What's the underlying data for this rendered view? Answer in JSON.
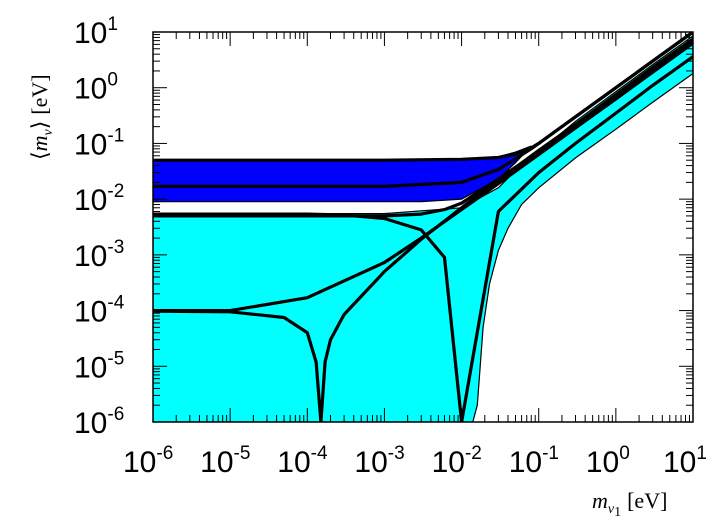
{
  "chart_data": {
    "type": "area",
    "title": "",
    "xlabel": {
      "symbol": "m",
      "subscript": "ν",
      "subsubscript": "1",
      "unit": "[eV]"
    },
    "ylabel": {
      "lbracket": "⟨",
      "symbol": "m",
      "subscript": "ν",
      "rbracket": "⟩",
      "unit": "[eV]"
    },
    "x_scale": "log",
    "y_scale": "log",
    "xlim": [
      1e-06,
      10
    ],
    "ylim": [
      1e-06,
      10
    ],
    "x_ticks": [
      {
        "base": "10",
        "exp": "-6"
      },
      {
        "base": "10",
        "exp": "-5"
      },
      {
        "base": "10",
        "exp": "-4"
      },
      {
        "base": "10",
        "exp": "-3"
      },
      {
        "base": "10",
        "exp": "-2"
      },
      {
        "base": "10",
        "exp": "-1"
      },
      {
        "base": "10",
        "exp": "0"
      },
      {
        "base": "10",
        "exp": "1"
      }
    ],
    "y_ticks": [
      {
        "base": "10",
        "exp": "-6"
      },
      {
        "base": "10",
        "exp": "-5"
      },
      {
        "base": "10",
        "exp": "-4"
      },
      {
        "base": "10",
        "exp": "-3"
      },
      {
        "base": "10",
        "exp": "-2"
      },
      {
        "base": "10",
        "exp": "-1"
      },
      {
        "base": "10",
        "exp": "0"
      },
      {
        "base": "10",
        "exp": "1"
      }
    ],
    "grid": false,
    "colors": {
      "cyan_region": "#00ffff",
      "blue_region": "#0000ff",
      "curves": "#000000",
      "frame": "#000000"
    },
    "regions": [
      {
        "color": "cyan",
        "upper": {
          "x": [
            1e-06,
            0.001,
            0.01,
            0.03,
            0.06,
            0.1,
            0.3,
            1,
            3,
            10
          ],
          "y": [
            0.0055,
            0.0055,
            0.007,
            0.016,
            0.042,
            0.07,
            0.25,
            0.85,
            2.6,
            8.5
          ]
        },
        "lower": {
          "x": [
            1e-06,
            0.014,
            0.016,
            0.019,
            0.023,
            0.03,
            0.04,
            0.06,
            0.1,
            0.3,
            1,
            3,
            10
          ],
          "y": [
            1e-06,
            1e-06,
            2e-06,
            5e-05,
            0.0003,
            0.0012,
            0.003,
            0.008,
            0.016,
            0.055,
            0.18,
            0.55,
            1.8
          ]
        }
      },
      {
        "color": "blue",
        "upper": {
          "x": [
            1e-06,
            0.001,
            0.01,
            0.03,
            0.05,
            0.08
          ],
          "y": [
            0.05,
            0.05,
            0.052,
            0.058,
            0.07,
            0.09
          ]
        },
        "lower": {
          "x": [
            1e-06,
            0.001,
            0.003,
            0.01,
            0.03,
            0.05,
            0.08
          ],
          "y": [
            0.009,
            0.009,
            0.009,
            0.01,
            0.023,
            0.045,
            0.09
          ]
        }
      }
    ],
    "curves": [
      {
        "x": [
          1e-06,
          0.001,
          0.01,
          0.03,
          0.05,
          0.08,
          0.1,
          0.3,
          1,
          3,
          10
        ],
        "y": [
          0.05,
          0.05,
          0.052,
          0.056,
          0.064,
          0.083,
          0.1,
          0.3,
          1,
          3,
          10
        ]
      },
      {
        "x": [
          1e-06,
          0.001,
          0.01,
          0.03,
          0.05,
          0.08,
          0.1,
          0.3,
          1,
          3,
          10
        ],
        "y": [
          0.017,
          0.017,
          0.02,
          0.034,
          0.053,
          0.08,
          0.1,
          0.3,
          1,
          3,
          10
        ]
      },
      {
        "x": [
          1e-06,
          0.001,
          0.003,
          0.006,
          0.01,
          0.03,
          0.1,
          0.3,
          1,
          3,
          10
        ],
        "y": [
          0.005,
          0.005,
          0.0054,
          0.0065,
          0.0085,
          0.023,
          0.072,
          0.22,
          0.72,
          2.15,
          7.2
        ]
      },
      {
        "x": [
          1e-06,
          1e-05,
          0.0001,
          0.001,
          0.003,
          0.01,
          0.03,
          0.1,
          0.3,
          1,
          3,
          10
        ],
        "y": [
          0.0001,
          0.0001,
          0.00017,
          0.00073,
          0.002,
          0.0065,
          0.019,
          0.063,
          0.19,
          0.63,
          1.9,
          6.3
        ]
      },
      {
        "x": [
          1e-06,
          0.0001,
          0.0003,
          0.001,
          0.003,
          0.006,
          0.01,
          0.03,
          0.1,
          0.3,
          1,
          3,
          10
        ],
        "y": [
          0.0054,
          0.0054,
          0.0052,
          0.0045,
          0.0028,
          0.0009,
          1e-06,
          0.006,
          0.03,
          0.1,
          0.35,
          1.1,
          3.6
        ]
      },
      {
        "x": [
          1e-06,
          1e-05,
          5e-05,
          0.0001,
          0.00013,
          0.00015,
          0.00017,
          0.0002,
          0.0003,
          0.001,
          0.003,
          0.01,
          0.03,
          0.1,
          0.3,
          1,
          3,
          10
        ],
        "y": [
          9.8e-05,
          9.5e-05,
          7.5e-05,
          4e-05,
          1.2e-05,
          1e-06,
          1.2e-05,
          3e-05,
          8.5e-05,
          0.0005,
          0.0019,
          0.007,
          0.022,
          0.075,
          0.22,
          0.75,
          2.3,
          7.5
        ]
      }
    ]
  }
}
